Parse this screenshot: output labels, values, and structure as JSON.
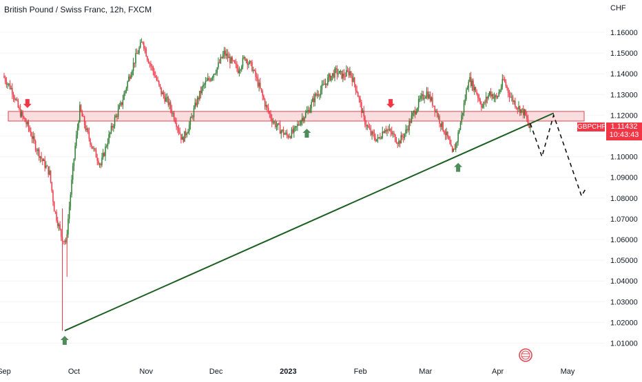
{
  "header": {
    "title": "British Pound / Swiss Franc, 12h, FXCM",
    "currency": "CHF"
  },
  "price_label": {
    "symbol": "GBPCHF",
    "price": "1.11432",
    "countdown": "10:43:43"
  },
  "colors": {
    "up": "#2e7d32",
    "down": "#f23645",
    "zone_fill": "#f7c6c9",
    "zone_border": "#e0454f",
    "trendline": "#1b5e20",
    "arrow_up": "#4e8c5a",
    "arrow_down": "#f23645"
  },
  "chart_data": {
    "type": "candlestick",
    "y_axis": {
      "range": [
        1.0,
        1.17
      ],
      "ticks": [
        "1.16000",
        "1.15000",
        "1.14000",
        "1.13000",
        "1.12000",
        "1.11000",
        "1.10000",
        "1.09000",
        "1.08000",
        "1.07000",
        "1.06000",
        "1.05000",
        "1.04000",
        "1.03000",
        "1.02000",
        "1.01000"
      ]
    },
    "x_axis": {
      "range": [
        "2022-09-01",
        "2023-05-10"
      ],
      "ticks": [
        {
          "label": "Sep",
          "date": "2022-09-01"
        },
        {
          "label": "Oct",
          "date": "2022-10-01"
        },
        {
          "label": "Nov",
          "date": "2022-11-01"
        },
        {
          "label": "Dec",
          "date": "2022-12-01"
        },
        {
          "label": "2023",
          "date": "2023-01-01"
        },
        {
          "label": "Feb",
          "date": "2023-02-01"
        },
        {
          "label": "Mar",
          "date": "2023-03-01"
        },
        {
          "label": "Apr",
          "date": "2023-04-01"
        },
        {
          "label": "May",
          "date": "2023-05-01"
        }
      ]
    },
    "price_path": [
      [
        "2022-09-01",
        1.139
      ],
      [
        "2022-09-05",
        1.132
      ],
      [
        "2022-09-08",
        1.122
      ],
      [
        "2022-09-12",
        1.114
      ],
      [
        "2022-09-15",
        1.105
      ],
      [
        "2022-09-18",
        1.098
      ],
      [
        "2022-09-21",
        1.092
      ],
      [
        "2022-09-23",
        1.075
      ],
      [
        "2022-09-26",
        1.062
      ],
      [
        "2022-09-28",
        1.058
      ],
      [
        "2022-09-30",
        1.082
      ],
      [
        "2022-10-02",
        1.105
      ],
      [
        "2022-10-04",
        1.123
      ],
      [
        "2022-10-07",
        1.112
      ],
      [
        "2022-10-10",
        1.103
      ],
      [
        "2022-10-13",
        1.096
      ],
      [
        "2022-10-16",
        1.108
      ],
      [
        "2022-10-19",
        1.118
      ],
      [
        "2022-10-22",
        1.126
      ],
      [
        "2022-10-25",
        1.138
      ],
      [
        "2022-10-28",
        1.148
      ],
      [
        "2022-10-31",
        1.156
      ],
      [
        "2022-11-02",
        1.148
      ],
      [
        "2022-11-05",
        1.14
      ],
      [
        "2022-11-08",
        1.131
      ],
      [
        "2022-11-11",
        1.126
      ],
      [
        "2022-11-14",
        1.118
      ],
      [
        "2022-11-17",
        1.108
      ],
      [
        "2022-11-20",
        1.115
      ],
      [
        "2022-11-23",
        1.126
      ],
      [
        "2022-11-26",
        1.134
      ],
      [
        "2022-11-29",
        1.138
      ],
      [
        "2022-12-02",
        1.143
      ],
      [
        "2022-12-05",
        1.15
      ],
      [
        "2022-12-08",
        1.146
      ],
      [
        "2022-12-11",
        1.142
      ],
      [
        "2022-12-14",
        1.148
      ],
      [
        "2022-12-17",
        1.143
      ],
      [
        "2022-12-20",
        1.134
      ],
      [
        "2022-12-23",
        1.124
      ],
      [
        "2022-12-26",
        1.117
      ],
      [
        "2022-12-29",
        1.113
      ],
      [
        "2023-01-01",
        1.11
      ],
      [
        "2023-01-04",
        1.112
      ],
      [
        "2023-01-07",
        1.118
      ],
      [
        "2023-01-10",
        1.122
      ],
      [
        "2023-01-13",
        1.129
      ],
      [
        "2023-01-16",
        1.133
      ],
      [
        "2023-01-19",
        1.138
      ],
      [
        "2023-01-22",
        1.141
      ],
      [
        "2023-01-25",
        1.139
      ],
      [
        "2023-01-28",
        1.141
      ],
      [
        "2023-01-31",
        1.132
      ],
      [
        "2023-02-03",
        1.118
      ],
      [
        "2023-02-06",
        1.111
      ],
      [
        "2023-02-09",
        1.108
      ],
      [
        "2023-02-12",
        1.114
      ],
      [
        "2023-02-15",
        1.111
      ],
      [
        "2023-02-18",
        1.107
      ],
      [
        "2023-02-21",
        1.112
      ],
      [
        "2023-02-24",
        1.12
      ],
      [
        "2023-02-27",
        1.127
      ],
      [
        "2023-03-02",
        1.131
      ],
      [
        "2023-03-05",
        1.125
      ],
      [
        "2023-03-08",
        1.116
      ],
      [
        "2023-03-11",
        1.109
      ],
      [
        "2023-03-13",
        1.101
      ],
      [
        "2023-03-15",
        1.108
      ],
      [
        "2023-03-18",
        1.125
      ],
      [
        "2023-03-20",
        1.138
      ],
      [
        "2023-03-23",
        1.132
      ],
      [
        "2023-03-26",
        1.124
      ],
      [
        "2023-03-29",
        1.131
      ],
      [
        "2023-04-01",
        1.128
      ],
      [
        "2023-04-04",
        1.137
      ],
      [
        "2023-04-07",
        1.129
      ],
      [
        "2023-04-10",
        1.124
      ],
      [
        "2023-04-13",
        1.121
      ],
      [
        "2023-04-15",
        1.114
      ]
    ],
    "resistance_zone": [
      1.1185,
      1.1205
    ],
    "trendline": [
      [
        "2022-09-27",
        1.016
      ],
      [
        "2023-04-25",
        1.121
      ]
    ],
    "projection": [
      [
        "2023-04-15",
        1.116
      ],
      [
        "2023-04-20",
        1.1
      ],
      [
        "2023-04-25",
        1.12
      ],
      [
        "2023-05-07",
        1.081
      ],
      [
        "2023-05-09",
        1.085
      ]
    ],
    "markers": [
      {
        "type": "down",
        "date": "2022-09-11",
        "price": 1.1235
      },
      {
        "type": "up",
        "date": "2023-01-09",
        "price": 1.1135
      },
      {
        "type": "down",
        "date": "2023-02-14",
        "price": 1.1235
      },
      {
        "type": "up",
        "date": "2023-03-15",
        "price": 1.097
      },
      {
        "type": "up",
        "date": "2022-09-27",
        "price": 1.0135
      }
    ]
  }
}
